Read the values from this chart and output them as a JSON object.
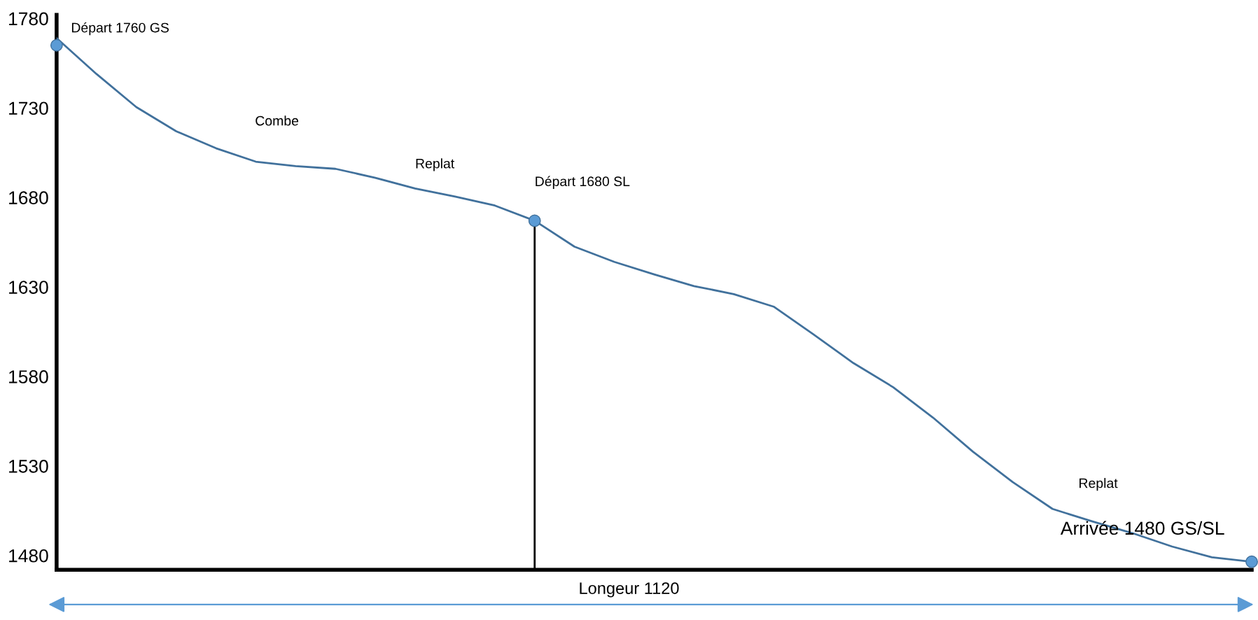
{
  "chart_data": {
    "type": "line",
    "categories": [
      null,
      null,
      null,
      null,
      null,
      null,
      null,
      null,
      null,
      null,
      null,
      null,
      null,
      null,
      null,
      null,
      null,
      null,
      null,
      null,
      null,
      null,
      null,
      null,
      null,
      null,
      null,
      null,
      null,
      null,
      null
    ],
    "series": [
      {
        "color": "#41719c",
        "values": [
          1769,
          1749,
          1730.5,
          1717,
          1707.5,
          1700,
          1697.5,
          1696,
          1691,
          1685,
          1680.5,
          1675.5,
          1667,
          1652.5,
          1644,
          1637,
          1630.5,
          1626,
          1619,
          1603.5,
          1587.5,
          1574,
          1557,
          1538,
          1521,
          1506,
          1499,
          1492.5,
          1485,
          1479,
          1476.5
        ]
      },
      {
        "type": "scatter",
        "color": "#5b9bd5",
        "values": [
          1765,
          null,
          null,
          null,
          null,
          null,
          null,
          null,
          null,
          null,
          null,
          null,
          null,
          null,
          null,
          null,
          null,
          null,
          null,
          null,
          null,
          null,
          null,
          null,
          null,
          null,
          null,
          null,
          null,
          null,
          1476.5
        ]
      },
      {
        "type": "lollipop",
        "color": "#5b9bd5",
        "values": [
          null,
          null,
          null,
          null,
          null,
          null,
          null,
          null,
          null,
          null,
          null,
          null,
          1667,
          null,
          null,
          null,
          null,
          null,
          null,
          null,
          null,
          null,
          null,
          null,
          null,
          null,
          null,
          null,
          null,
          null,
          null
        ]
      }
    ],
    "ylim": [
      1472,
      1782
    ],
    "yticks": [
      1480,
      1530,
      1580,
      1630,
      1680,
      1730,
      1780
    ],
    "tick_labels": "y",
    "grid": false,
    "annotations": [
      "Départ 1760 GS",
      "Combe",
      "Replat",
      "Départ 1680 SL",
      "Replat",
      "Arrivée 1480 GS/SL",
      "Longeur 1120"
    ]
  }
}
